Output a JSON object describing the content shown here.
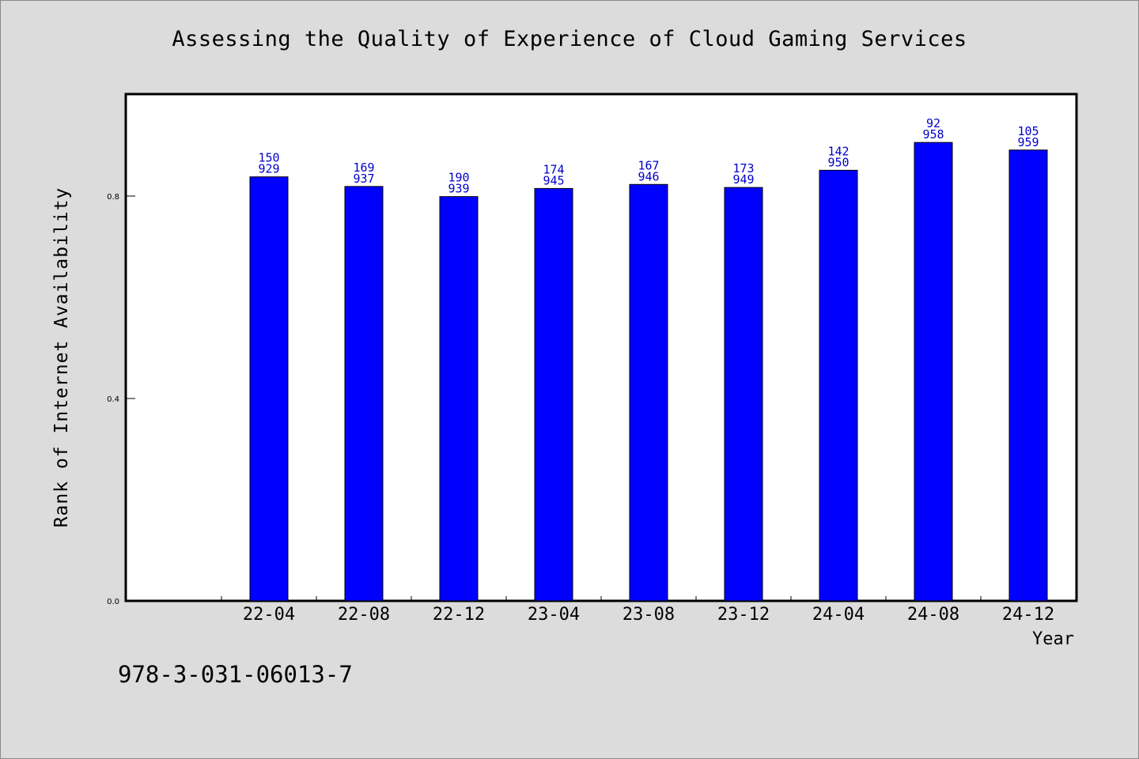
{
  "chart_data": {
    "type": "bar",
    "title": "Assessing the Quality of Experience of Cloud Gaming Services",
    "xlabel": "Year",
    "ylabel": "Rank of Internet Availability",
    "categories": [
      "22-04",
      "22-08",
      "22-12",
      "23-04",
      "23-08",
      "23-12",
      "24-04",
      "24-08",
      "24-12"
    ],
    "values": [
      0.838,
      0.819,
      0.799,
      0.815,
      0.823,
      0.817,
      0.851,
      0.906,
      0.891
    ],
    "bar_labels_top": [
      "150",
      "169",
      "190",
      "174",
      "167",
      "173",
      "142",
      "92",
      "105"
    ],
    "bar_labels_bottom": [
      "929",
      "937",
      "939",
      "945",
      "946",
      "949",
      "950",
      "958",
      "959"
    ],
    "ylim": [
      0,
      1.0
    ],
    "yticks": [
      0.0,
      0.4,
      0.8
    ],
    "ytick_labels": [
      "0.0",
      "0.4",
      "0.8"
    ],
    "grid": false,
    "colors": {
      "bar": "#0000ff",
      "bar_label": "#0000cc",
      "plot_bg": "#ffffff",
      "page_bg": "#dcdcdc"
    }
  },
  "footer": {
    "code": "978-3-031-06013-7"
  }
}
